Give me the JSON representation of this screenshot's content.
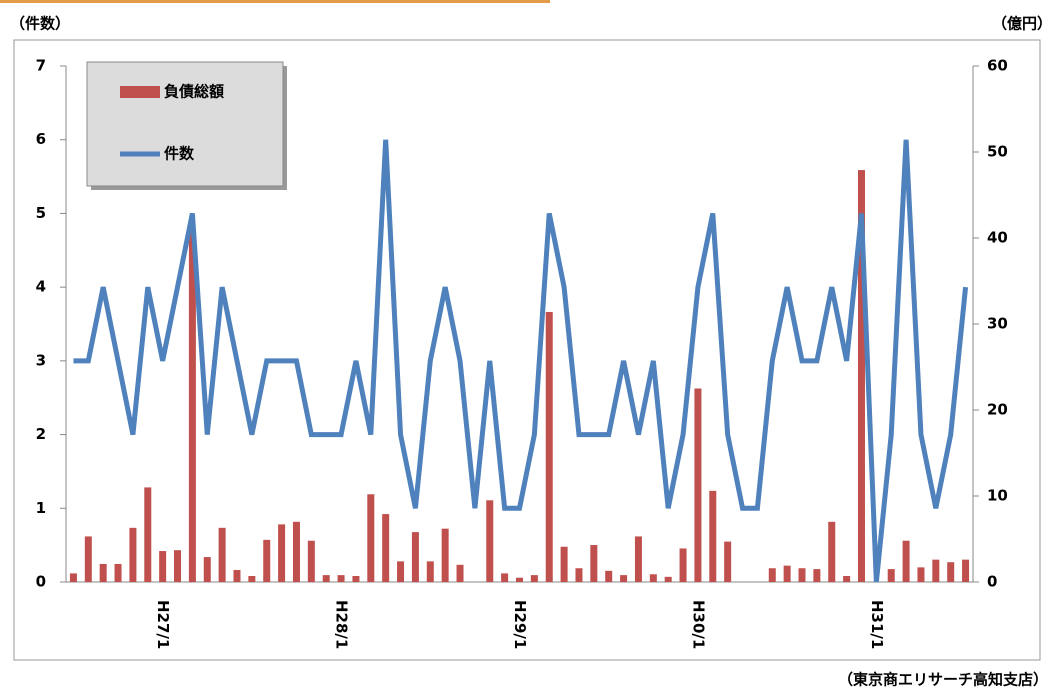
{
  "chart_data": {
    "type": "combo",
    "y_label": "（件数）",
    "y2_label": "（億円）",
    "source": "（東京商エリサーチ高知支店）",
    "categories": [
      null,
      null,
      null,
      null,
      null,
      null,
      "H27/1",
      null,
      null,
      null,
      null,
      null,
      null,
      null,
      null,
      null,
      null,
      null,
      "H28/1",
      null,
      null,
      null,
      null,
      null,
      null,
      null,
      null,
      null,
      null,
      null,
      "H29/1",
      null,
      null,
      null,
      null,
      null,
      null,
      null,
      null,
      null,
      null,
      null,
      "H30/1",
      null,
      null,
      null,
      null,
      null,
      null,
      null,
      null,
      null,
      null,
      null,
      "H31/1",
      null,
      null,
      null,
      null,
      null,
      null
    ],
    "ylim": [
      0,
      7
    ],
    "yticks": [
      0,
      1,
      2,
      3,
      4,
      5,
      6,
      7
    ],
    "y2lim": [
      0,
      60
    ],
    "y2ticks": [
      0,
      10,
      20,
      30,
      40,
      50,
      60
    ],
    "series": [
      {
        "name": "負債総額",
        "type": "bar",
        "axis": "y2",
        "color": "#c0504d",
        "values": [
          1,
          5.3,
          2.1,
          2.1,
          6.3,
          11,
          3.6,
          3.7,
          41,
          2.9,
          6.3,
          1.4,
          0.7,
          4.9,
          6.7,
          7,
          4.8,
          0.8,
          0.8,
          0.7,
          10.2,
          7.9,
          2.4,
          5.8,
          2.4,
          6.2,
          2,
          0,
          9.5,
          1,
          0.5,
          0.8,
          31.4,
          4.1,
          1.6,
          4.3,
          1.3,
          0.8,
          5.3,
          0.9,
          0.6,
          3.9,
          22.5,
          10.6,
          4.7,
          0,
          0,
          1.6,
          1.9,
          1.6,
          1.5,
          7,
          0.7,
          47.9,
          0,
          1.5,
          4.8,
          1.7,
          2.6,
          2.3,
          2.6
        ]
      },
      {
        "name": "件数",
        "type": "line",
        "axis": "y",
        "color": "#4f81bd",
        "values": [
          3,
          3,
          4,
          3,
          2,
          4,
          3,
          4,
          5,
          2,
          4,
          3,
          2,
          3,
          3,
          3,
          2,
          2,
          2,
          3,
          2,
          6,
          2,
          1,
          3,
          4,
          3,
          1,
          3,
          1,
          1,
          2,
          5,
          4,
          2,
          2,
          2,
          3,
          2,
          3,
          1,
          2,
          4,
          5,
          2,
          1,
          1,
          3,
          4,
          3,
          3,
          4,
          3,
          5,
          0,
          2,
          6,
          2,
          1,
          2,
          4
        ]
      }
    ]
  }
}
